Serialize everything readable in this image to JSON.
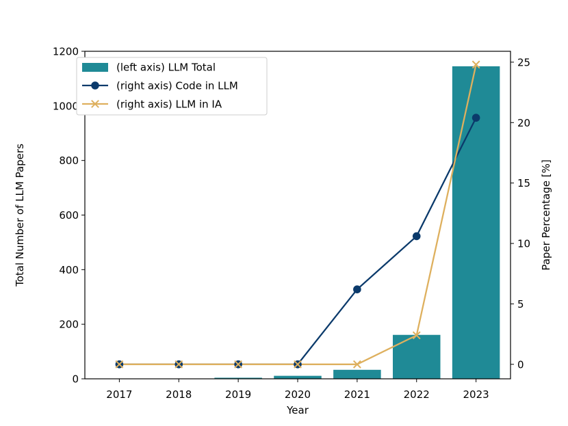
{
  "chart_data": {
    "type": "bar+line",
    "categories": [
      "2017",
      "2018",
      "2019",
      "2020",
      "2021",
      "2022",
      "2023"
    ],
    "xlabel": "Year",
    "ylabel_left": "Total Number of LLM Papers",
    "ylabel_right": "Paper Percentage [%]",
    "ylim_left": [
      0,
      1200
    ],
    "yticks_left": [
      0,
      200,
      400,
      600,
      800,
      1000,
      1200
    ],
    "ylim_right": [
      -1.2,
      25.9
    ],
    "yticks_right": [
      0,
      5,
      10,
      15,
      20,
      25
    ],
    "grid": false,
    "legend_position": "top-left",
    "bar_series": {
      "name": "(left axis) LLM Total",
      "axis": "left",
      "color": "#1f8a96",
      "values": [
        0,
        0,
        4,
        11,
        33,
        161,
        1145
      ]
    },
    "line_series": [
      {
        "name": "(right axis) Code in LLM",
        "axis": "right",
        "color": "#0b3a6b",
        "marker": "circle",
        "values": [
          0,
          0,
          0,
          0,
          6.2,
          10.6,
          20.4
        ]
      },
      {
        "name": "(right axis) LLM in IA",
        "axis": "right",
        "color": "#deb05e",
        "marker": "x",
        "values": [
          0,
          0,
          0,
          0,
          0,
          2.4,
          24.8
        ]
      }
    ]
  }
}
